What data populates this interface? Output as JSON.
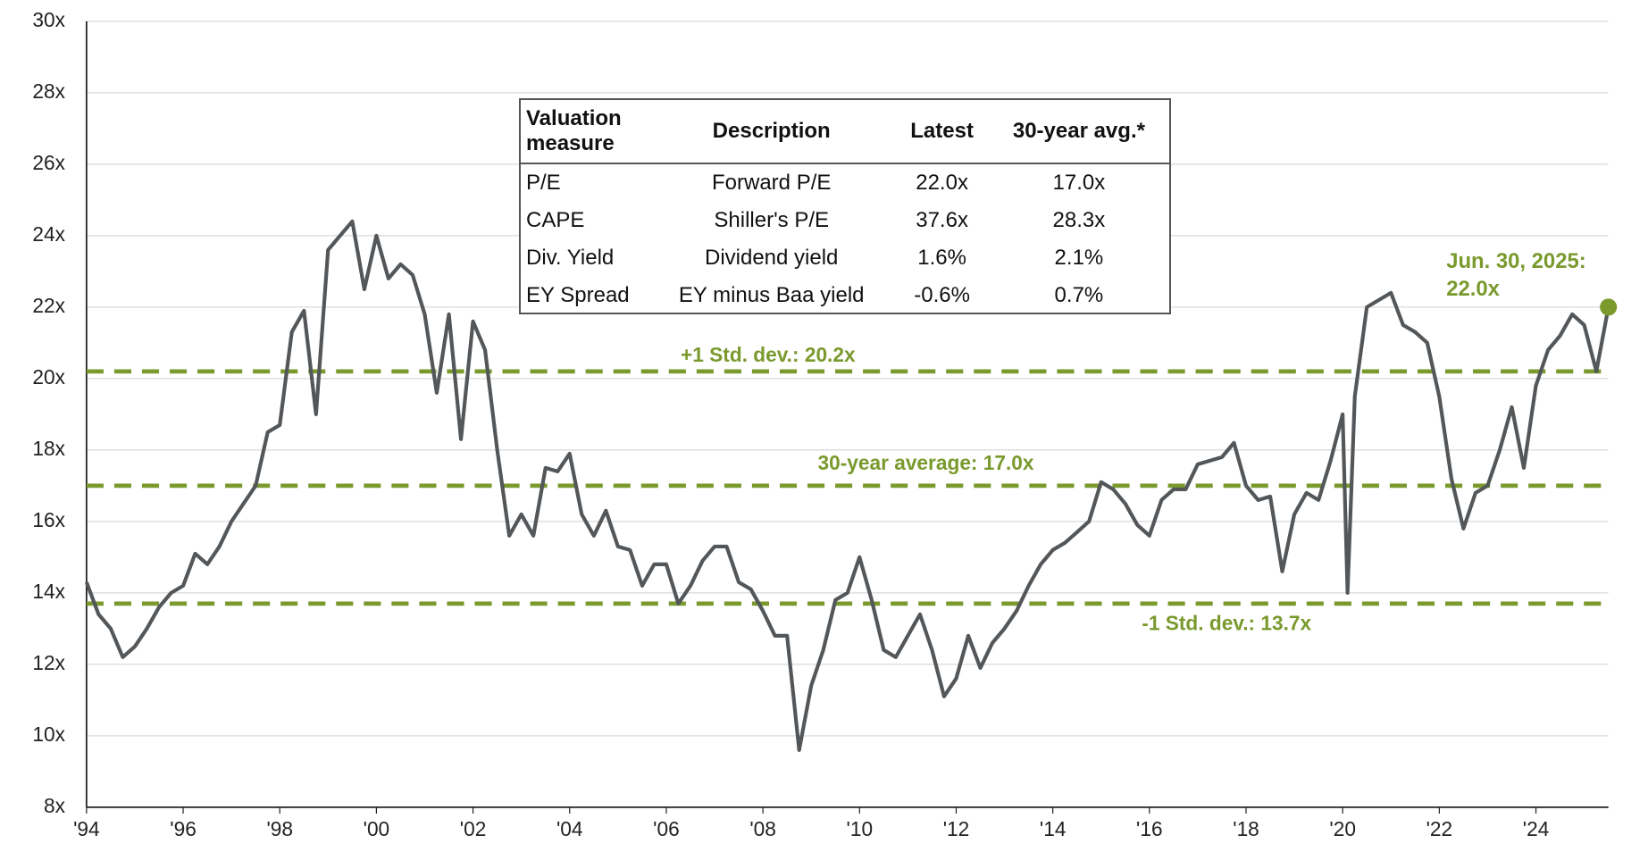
{
  "chart_data": {
    "type": "line",
    "color": "#54575a",
    "ref_color": "#7a9a2e",
    "grid": true,
    "xlim": [
      1994,
      2025.5
    ],
    "ylim": [
      8,
      30
    ],
    "xticks": [
      {
        "value": 1994,
        "label": "'94"
      },
      {
        "value": 1996,
        "label": "'96"
      },
      {
        "value": 1998,
        "label": "'98"
      },
      {
        "value": 2000,
        "label": "'00"
      },
      {
        "value": 2002,
        "label": "'02"
      },
      {
        "value": 2004,
        "label": "'04"
      },
      {
        "value": 2006,
        "label": "'06"
      },
      {
        "value": 2008,
        "label": "'08"
      },
      {
        "value": 2010,
        "label": "'10"
      },
      {
        "value": 2012,
        "label": "'12"
      },
      {
        "value": 2014,
        "label": "'14"
      },
      {
        "value": 2016,
        "label": "'16"
      },
      {
        "value": 2018,
        "label": "'18"
      },
      {
        "value": 2020,
        "label": "'20"
      },
      {
        "value": 2022,
        "label": "'22"
      },
      {
        "value": 2024,
        "label": "'24"
      }
    ],
    "yticks": [
      {
        "value": 8,
        "label": "8x"
      },
      {
        "value": 10,
        "label": "10x"
      },
      {
        "value": 12,
        "label": "12x"
      },
      {
        "value": 14,
        "label": "14x"
      },
      {
        "value": 16,
        "label": "16x"
      },
      {
        "value": 18,
        "label": "18x"
      },
      {
        "value": 20,
        "label": "20x"
      },
      {
        "value": 22,
        "label": "22x"
      },
      {
        "value": 24,
        "label": "24x"
      },
      {
        "value": 26,
        "label": "26x"
      },
      {
        "value": 28,
        "label": "28x"
      },
      {
        "value": 30,
        "label": "30x"
      }
    ],
    "x": [
      1994.0,
      1994.25,
      1994.5,
      1994.75,
      1995.0,
      1995.25,
      1995.5,
      1995.75,
      1996.0,
      1996.25,
      1996.5,
      1996.75,
      1997.0,
      1997.25,
      1997.5,
      1997.75,
      1998.0,
      1998.25,
      1998.5,
      1998.75,
      1999.0,
      1999.25,
      1999.5,
      1999.75,
      2000.0,
      2000.25,
      2000.5,
      2000.75,
      2001.0,
      2001.25,
      2001.5,
      2001.75,
      2002.0,
      2002.25,
      2002.5,
      2002.75,
      2003.0,
      2003.25,
      2003.5,
      2003.75,
      2004.0,
      2004.25,
      2004.5,
      2004.75,
      2005.0,
      2005.25,
      2005.5,
      2005.75,
      2006.0,
      2006.25,
      2006.5,
      2006.75,
      2007.0,
      2007.25,
      2007.5,
      2007.75,
      2008.0,
      2008.25,
      2008.5,
      2008.75,
      2009.0,
      2009.25,
      2009.5,
      2009.75,
      2010.0,
      2010.25,
      2010.5,
      2010.75,
      2011.0,
      2011.25,
      2011.5,
      2011.75,
      2012.0,
      2012.25,
      2012.5,
      2012.75,
      2013.0,
      2013.25,
      2013.5,
      2013.75,
      2014.0,
      2014.25,
      2014.5,
      2014.75,
      2015.0,
      2015.25,
      2015.5,
      2015.75,
      2016.0,
      2016.25,
      2016.5,
      2016.75,
      2017.0,
      2017.25,
      2017.5,
      2017.75,
      2018.0,
      2018.25,
      2018.5,
      2018.75,
      2019.0,
      2019.25,
      2019.5,
      2019.75,
      2020.0,
      2020.1,
      2020.25,
      2020.5,
      2020.75,
      2021.0,
      2021.25,
      2021.5,
      2021.75,
      2022.0,
      2022.25,
      2022.5,
      2022.75,
      2023.0,
      2023.25,
      2023.5,
      2023.75,
      2024.0,
      2024.25,
      2024.5,
      2024.75,
      2025.0,
      2025.25,
      2025.5
    ],
    "values": [
      14.3,
      13.4,
      13.0,
      12.2,
      12.5,
      13.0,
      13.6,
      14.0,
      14.2,
      15.1,
      14.8,
      15.3,
      16.0,
      16.5,
      17.0,
      18.5,
      18.7,
      21.3,
      21.9,
      19.0,
      23.6,
      24.0,
      24.4,
      22.5,
      24.0,
      22.8,
      23.2,
      22.9,
      21.8,
      19.6,
      21.8,
      18.3,
      21.6,
      20.8,
      18.0,
      15.6,
      16.2,
      15.6,
      17.5,
      17.4,
      17.9,
      16.2,
      15.6,
      16.3,
      15.3,
      15.2,
      14.2,
      14.8,
      14.8,
      13.7,
      14.2,
      14.9,
      15.3,
      15.3,
      14.3,
      14.1,
      13.5,
      12.8,
      12.8,
      9.6,
      11.4,
      12.4,
      13.8,
      14.0,
      15.0,
      13.8,
      12.4,
      12.2,
      12.8,
      13.4,
      12.4,
      11.1,
      11.6,
      12.8,
      11.9,
      12.6,
      13.0,
      13.5,
      14.2,
      14.8,
      15.2,
      15.4,
      15.7,
      16.0,
      17.1,
      16.9,
      16.5,
      15.9,
      15.6,
      16.6,
      16.9,
      16.9,
      17.6,
      17.7,
      17.8,
      18.2,
      17.0,
      16.6,
      16.7,
      14.6,
      16.2,
      16.8,
      16.6,
      17.7,
      19.0,
      14.0,
      19.5,
      22.0,
      22.2,
      22.4,
      21.5,
      21.3,
      21.0,
      19.5,
      17.2,
      15.8,
      16.8,
      17.0,
      18.0,
      19.2,
      17.5,
      19.8,
      20.8,
      21.2,
      21.8,
      21.5,
      20.2,
      22.0
    ],
    "reference_lines": [
      {
        "value": 20.2,
        "label": "+1 Std. dev.: 20.2x"
      },
      {
        "value": 17.0,
        "label": "30-year average: 17.0x"
      },
      {
        "value": 13.7,
        "label": "-1 Std. dev.: 13.7x"
      }
    ],
    "annotation": [
      "Jun. 30, 2025:",
      "22.0x"
    ],
    "table": {
      "columns": [
        "Valuation measure",
        "Description",
        "Latest",
        "30-year avg.*"
      ],
      "rows": [
        [
          "P/E",
          "Forward P/E",
          "22.0x",
          "17.0x"
        ],
        [
          "CAPE",
          "Shiller's P/E",
          "37.6x",
          "28.3x"
        ],
        [
          "Div. Yield",
          "Dividend yield",
          "1.6%",
          "2.1%"
        ],
        [
          "EY Spread",
          "EY minus Baa yield",
          "-0.6%",
          "0.7%"
        ]
      ]
    }
  }
}
